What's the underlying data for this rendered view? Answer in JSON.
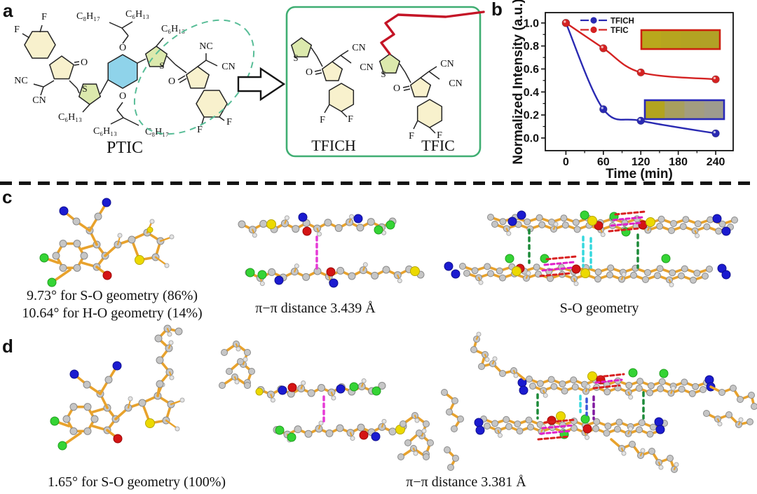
{
  "panels": {
    "a": "a",
    "b": "b",
    "c": "c",
    "d": "d"
  },
  "panel_a": {
    "ptic_label": "PTIC",
    "box_left_molecule": "TFICH",
    "box_right_molecule": "TFIC",
    "glyphs": {
      "F": "F",
      "O": "O",
      "S": "S",
      "NC": "NC",
      "CN": "CN",
      "C8H17": "C₈H₁₇",
      "C6H13": "C₆H₁₃"
    },
    "highlight_colors": {
      "core_ring": "#8fd3ea",
      "thiophene_ring": "#dce9ad",
      "endgroup_ring": "#f8f1cd",
      "dashed_ellipse": "#58bd97",
      "box_border": "#3fae72",
      "hexyl_chain_red": "#c41426"
    }
  },
  "chart_data": {
    "type": "line",
    "title": "",
    "xlabel": "Time (min)",
    "ylabel": "Normalized Intensity (a.u.)",
    "x": [
      0,
      60,
      120,
      240
    ],
    "series": [
      {
        "name": "TFICH",
        "color": "#2a2ab2",
        "values": [
          1.0,
          0.25,
          0.15,
          0.04
        ]
      },
      {
        "name": "TFIC",
        "color": "#d42222",
        "values": [
          1.0,
          0.78,
          0.57,
          0.51
        ]
      }
    ],
    "xlim": [
      -33,
      268
    ],
    "ylim": [
      -0.11,
      1.09
    ],
    "xticks": [
      0,
      60,
      120,
      180,
      240
    ],
    "yticks": [
      0.0,
      0.2,
      0.4,
      0.6,
      0.8,
      1.0
    ],
    "grid": false,
    "legend_position": "top-left-inside",
    "insets": [
      {
        "name": "TFIC film strip",
        "border": "#cc2010",
        "segment_colors": [
          "#b9a81c",
          "#b6a51f",
          "#b3a322",
          "#b1a126"
        ]
      },
      {
        "name": "TFICH film strip",
        "border": "#2828b8",
        "segment_colors": [
          "#b3a41f",
          "#a89f5e",
          "#a39d80",
          "#9e9b8e"
        ]
      }
    ]
  },
  "panel_c": {
    "caption_left_line1": "9.73° for S-O geometry (86%)",
    "caption_left_line2": "10.64° for H-O geometry (14%)",
    "caption_mid": "π−π distance 3.439 Å",
    "caption_right": "S-O geometry"
  },
  "panel_d": {
    "caption_left": "1.65° for S-O geometry (100%)",
    "caption_mid": "π−π distance 3.381 Å"
  }
}
